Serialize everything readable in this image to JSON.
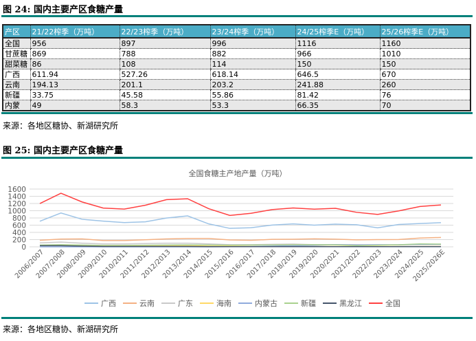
{
  "fig24": {
    "title": "图 24:  国内主要产区食糖产量",
    "source": "来源：各地区糖协、新湖研究所",
    "headers": [
      "产区",
      "21/22榨季（万吨）",
      "22/23榨季（万吨）",
      "23/24榨季（万吨）",
      "24/25榨季E（万吨）",
      "25/26榨季E（万吨）"
    ],
    "rows": [
      [
        "全国",
        "956",
        "897",
        "996",
        "1116",
        "1160"
      ],
      [
        "甘蔗糖",
        "869",
        "788",
        "882",
        "966",
        "1010"
      ],
      [
        "甜菜糖",
        "86",
        "108",
        "114",
        "150",
        "150"
      ],
      [
        "广西",
        "611.94",
        "527.26",
        "618.14",
        "646.5",
        "670"
      ],
      [
        "云南",
        "194.13",
        "201.1",
        "203.2",
        "241.88",
        "260"
      ],
      [
        "新疆",
        "33.75",
        "45.58",
        "55.86",
        "81.42",
        "76"
      ],
      [
        "内蒙",
        "49",
        "58.3",
        "53.3",
        "66.35",
        "70"
      ]
    ]
  },
  "fig25": {
    "title": "图 25:  国内主要产区食糖产量",
    "source": "来源：各地区糖协、新湖研究所"
  },
  "chart_data": {
    "type": "line",
    "title": "全国食糖主产地产量（万吨）",
    "ylim": [
      0,
      1600
    ],
    "yticks": [
      0,
      200,
      400,
      600,
      800,
      1000,
      1200,
      1400,
      1600
    ],
    "grid": true,
    "legend": "bottom",
    "categories": [
      "2006/2007",
      "2007/2008",
      "2008/2009",
      "2009/2010",
      "2010/2011",
      "2011/2012",
      "2012/2013",
      "2013/2014",
      "2014/2015",
      "2015/2016",
      "2016/2017",
      "2017/2018",
      "2018/2019",
      "2019/2020",
      "2020/2021",
      "2021/2022",
      "2022/2023",
      "2023/2024",
      "2024/2025",
      "2025/2026E"
    ],
    "series": [
      {
        "name": "广西",
        "color": "#9dc3e6",
        "values": [
          708,
          938,
          763,
          711,
          672,
          694,
          798,
          857,
          635,
          511,
          529,
          603,
          635,
          601,
          628,
          612,
          527,
          618,
          646,
          670
        ]
      },
      {
        "name": "云南",
        "color": "#f4b183",
        "values": [
          180,
          215,
          220,
          175,
          175,
          195,
          220,
          230,
          232,
          190,
          180,
          206,
          210,
          221,
          211,
          194,
          201,
          203,
          242,
          260
        ]
      },
      {
        "name": "广东",
        "color": "#c9c9c9",
        "values": [
          110,
          130,
          100,
          80,
          80,
          90,
          100,
          100,
          80,
          60,
          60,
          70,
          75,
          60,
          62,
          60,
          55,
          60,
          60,
          60
        ]
      },
      {
        "name": "海南",
        "color": "#ffd966",
        "values": [
          40,
          50,
          40,
          30,
          30,
          25,
          30,
          30,
          20,
          20,
          15,
          15,
          15,
          10,
          10,
          10,
          10,
          10,
          10,
          10
        ]
      },
      {
        "name": "内蒙古",
        "color": "#8faadc",
        "values": [
          0,
          0,
          0,
          0,
          0,
          0,
          0,
          0,
          0,
          5,
          10,
          20,
          30,
          40,
          60,
          49,
          58,
          53,
          66,
          70
        ]
      },
      {
        "name": "新疆",
        "color": "#a9d18e",
        "values": [
          50,
          60,
          50,
          40,
          40,
          45,
          50,
          55,
          50,
          45,
          50,
          50,
          55,
          60,
          55,
          34,
          46,
          56,
          81,
          76
        ]
      },
      {
        "name": "黑龙江",
        "color": "#44546a",
        "values": [
          30,
          30,
          20,
          10,
          10,
          10,
          10,
          10,
          5,
          5,
          5,
          5,
          5,
          5,
          5,
          5,
          5,
          5,
          5,
          5
        ]
      },
      {
        "name": "全国",
        "color": "#ff4040",
        "values": [
          1199,
          1484,
          1243,
          1074,
          1045,
          1152,
          1307,
          1331,
          1056,
          870,
          929,
          1031,
          1076,
          1042,
          1067,
          956,
          897,
          996,
          1116,
          1160
        ]
      }
    ]
  }
}
